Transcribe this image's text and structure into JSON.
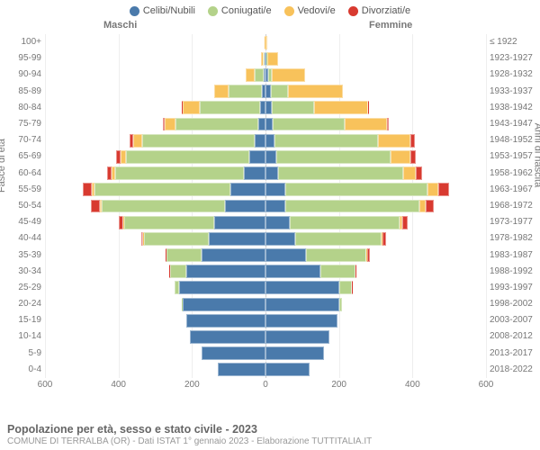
{
  "chart": {
    "type": "population-pyramid",
    "legend": [
      {
        "label": "Celibi/Nubili",
        "color": "#4a7aab"
      },
      {
        "label": "Coniugati/e",
        "color": "#b4d28a"
      },
      {
        "label": "Vedovi/e",
        "color": "#f8c25b"
      },
      {
        "label": "Divorziati/e",
        "color": "#d83a30"
      }
    ],
    "top_labels": {
      "male": "Maschi",
      "female": "Femmine"
    },
    "y_left_title": "Fasce di età",
    "y_right_title": "Anni di nascita",
    "x_ticks": [
      600,
      400,
      200,
      0,
      200,
      400,
      600
    ],
    "x_max": 600,
    "background_color": "#ffffff",
    "grid_color": "#eeeeee",
    "footer_title": "Popolazione per età, sesso e stato civile - 2023",
    "footer_sub": "COMUNE DI TERRALBA (OR) - Dati ISTAT 1° gennaio 2023 - Elaborazione TUTTITALIA.IT",
    "rows": [
      {
        "age": "100+",
        "birth": "≤ 1922",
        "m": {
          "c": 0,
          "con": 0,
          "v": 2,
          "d": 0
        },
        "f": {
          "c": 0,
          "con": 0,
          "v": 5,
          "d": 0
        }
      },
      {
        "age": "95-99",
        "birth": "1923-1927",
        "m": {
          "c": 2,
          "con": 3,
          "v": 8,
          "d": 0
        },
        "f": {
          "c": 2,
          "con": 2,
          "v": 30,
          "d": 0
        }
      },
      {
        "age": "90-94",
        "birth": "1928-1932",
        "m": {
          "c": 5,
          "con": 25,
          "v": 25,
          "d": 0
        },
        "f": {
          "c": 8,
          "con": 10,
          "v": 90,
          "d": 0
        }
      },
      {
        "age": "85-89",
        "birth": "1933-1937",
        "m": {
          "c": 10,
          "con": 90,
          "v": 40,
          "d": 0
        },
        "f": {
          "c": 15,
          "con": 45,
          "v": 150,
          "d": 0
        }
      },
      {
        "age": "80-84",
        "birth": "1938-1942",
        "m": {
          "c": 15,
          "con": 165,
          "v": 45,
          "d": 2
        },
        "f": {
          "c": 18,
          "con": 115,
          "v": 145,
          "d": 3
        }
      },
      {
        "age": "75-79",
        "birth": "1943-1947",
        "m": {
          "c": 20,
          "con": 225,
          "v": 30,
          "d": 5
        },
        "f": {
          "c": 20,
          "con": 195,
          "v": 115,
          "d": 5
        }
      },
      {
        "age": "70-74",
        "birth": "1948-1952",
        "m": {
          "c": 30,
          "con": 305,
          "v": 25,
          "d": 10
        },
        "f": {
          "c": 25,
          "con": 280,
          "v": 90,
          "d": 12
        }
      },
      {
        "age": "65-69",
        "birth": "1953-1957",
        "m": {
          "c": 45,
          "con": 335,
          "v": 15,
          "d": 12
        },
        "f": {
          "c": 30,
          "con": 310,
          "v": 55,
          "d": 15
        }
      },
      {
        "age": "60-64",
        "birth": "1958-1962",
        "m": {
          "c": 60,
          "con": 350,
          "v": 10,
          "d": 12
        },
        "f": {
          "c": 35,
          "con": 340,
          "v": 35,
          "d": 15
        }
      },
      {
        "age": "55-59",
        "birth": "1963-1967",
        "m": {
          "c": 95,
          "con": 370,
          "v": 8,
          "d": 25
        },
        "f": {
          "c": 55,
          "con": 385,
          "v": 30,
          "d": 30
        }
      },
      {
        "age": "50-54",
        "birth": "1968-1972",
        "m": {
          "c": 110,
          "con": 335,
          "v": 5,
          "d": 25
        },
        "f": {
          "c": 55,
          "con": 365,
          "v": 15,
          "d": 22
        }
      },
      {
        "age": "45-49",
        "birth": "1973-1977",
        "m": {
          "c": 140,
          "con": 245,
          "v": 3,
          "d": 12
        },
        "f": {
          "c": 65,
          "con": 300,
          "v": 8,
          "d": 15
        }
      },
      {
        "age": "40-44",
        "birth": "1978-1982",
        "m": {
          "c": 155,
          "con": 175,
          "v": 2,
          "d": 6
        },
        "f": {
          "c": 80,
          "con": 235,
          "v": 3,
          "d": 10
        }
      },
      {
        "age": "35-39",
        "birth": "1983-1987",
        "m": {
          "c": 175,
          "con": 95,
          "v": 0,
          "d": 3
        },
        "f": {
          "c": 110,
          "con": 165,
          "v": 2,
          "d": 6
        }
      },
      {
        "age": "30-34",
        "birth": "1988-1992",
        "m": {
          "c": 215,
          "con": 45,
          "v": 0,
          "d": 2
        },
        "f": {
          "c": 150,
          "con": 95,
          "v": 0,
          "d": 3
        }
      },
      {
        "age": "25-29",
        "birth": "1993-1997",
        "m": {
          "c": 235,
          "con": 12,
          "v": 0,
          "d": 0
        },
        "f": {
          "c": 200,
          "con": 35,
          "v": 0,
          "d": 2
        }
      },
      {
        "age": "20-24",
        "birth": "1998-2002",
        "m": {
          "c": 225,
          "con": 3,
          "v": 0,
          "d": 0
        },
        "f": {
          "c": 200,
          "con": 8,
          "v": 0,
          "d": 0
        }
      },
      {
        "age": "15-19",
        "birth": "2003-2007",
        "m": {
          "c": 215,
          "con": 0,
          "v": 0,
          "d": 0
        },
        "f": {
          "c": 195,
          "con": 0,
          "v": 0,
          "d": 0
        }
      },
      {
        "age": "10-14",
        "birth": "2008-2012",
        "m": {
          "c": 205,
          "con": 0,
          "v": 0,
          "d": 0
        },
        "f": {
          "c": 175,
          "con": 0,
          "v": 0,
          "d": 0
        }
      },
      {
        "age": "5-9",
        "birth": "2013-2017",
        "m": {
          "c": 175,
          "con": 0,
          "v": 0,
          "d": 0
        },
        "f": {
          "c": 160,
          "con": 0,
          "v": 0,
          "d": 0
        }
      },
      {
        "age": "0-4",
        "birth": "2018-2022",
        "m": {
          "c": 130,
          "con": 0,
          "v": 0,
          "d": 0
        },
        "f": {
          "c": 120,
          "con": 0,
          "v": 0,
          "d": 0
        }
      }
    ]
  }
}
